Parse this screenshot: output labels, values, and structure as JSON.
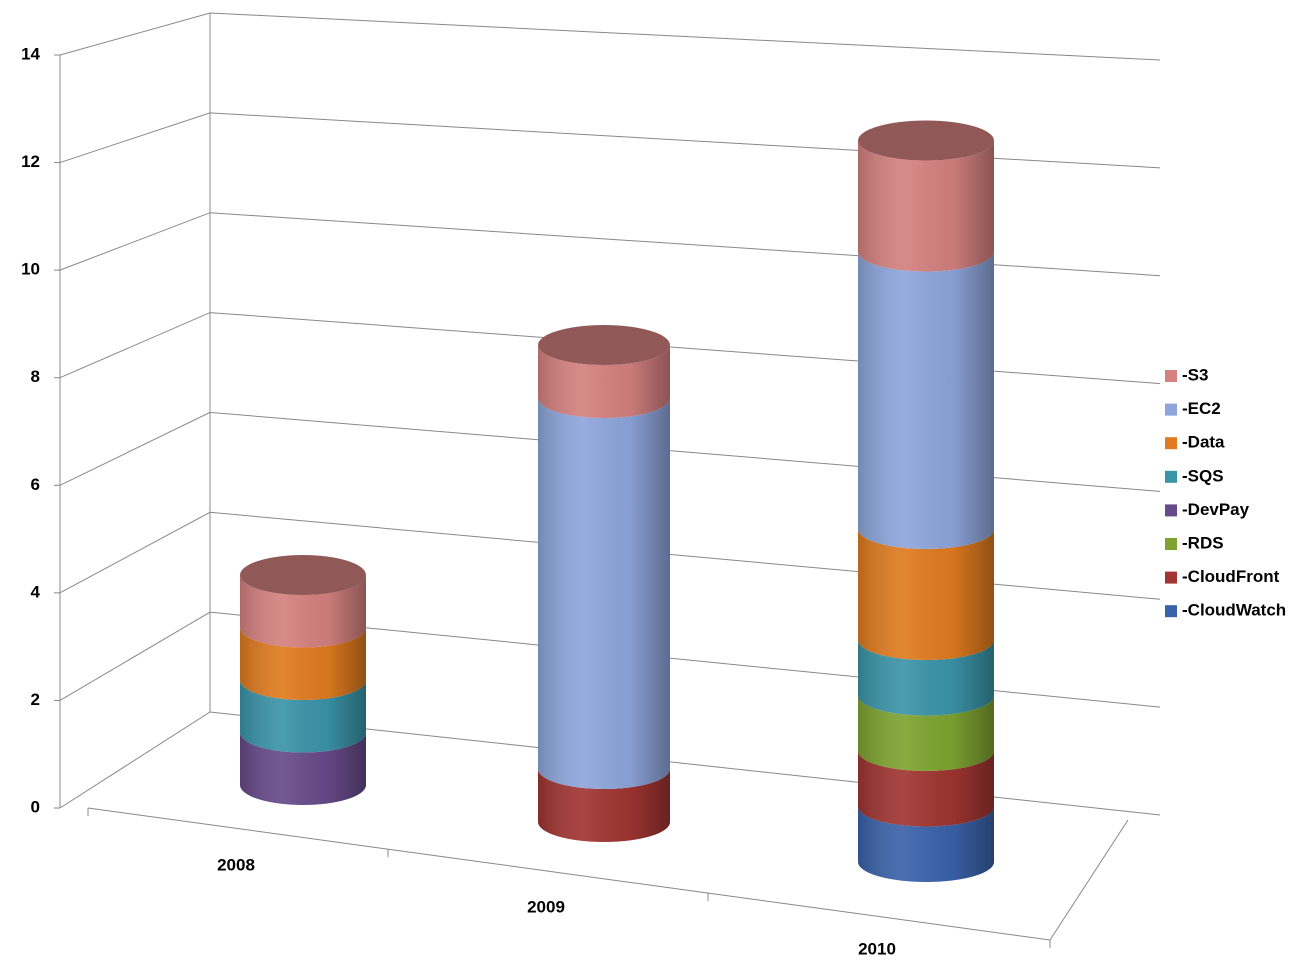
{
  "chart_data": {
    "type": "bar3d_cylinder_stacked",
    "categories": [
      "2008",
      "2009",
      "2010"
    ],
    "series": [
      {
        "name": "-CloudWatch",
        "color": "#3a62aa",
        "values": [
          0,
          0,
          1
        ]
      },
      {
        "name": "-CloudFront",
        "color": "#a03532",
        "values": [
          0,
          1,
          1
        ]
      },
      {
        "name": "-RDS",
        "color": "#7ea331",
        "values": [
          0,
          0,
          1
        ]
      },
      {
        "name": "-DevPay",
        "color": "#674a8a",
        "values": [
          1,
          0,
          0
        ]
      },
      {
        "name": "-SQS",
        "color": "#3a94a8",
        "values": [
          1,
          0,
          1
        ]
      },
      {
        "name": "-Data",
        "color": "#e07b1f",
        "values": [
          1,
          0,
          2
        ]
      },
      {
        "name": "-EC2",
        "color": "#8ea6dc",
        "values": [
          0,
          7,
          5
        ]
      },
      {
        "name": "-S3",
        "color": "#d4817f",
        "values": [
          1,
          1,
          2
        ]
      }
    ],
    "ylim": [
      0,
      14
    ],
    "yticks": [
      0,
      2,
      4,
      6,
      8,
      10,
      12,
      14
    ],
    "grid": true,
    "legend": "right"
  }
}
